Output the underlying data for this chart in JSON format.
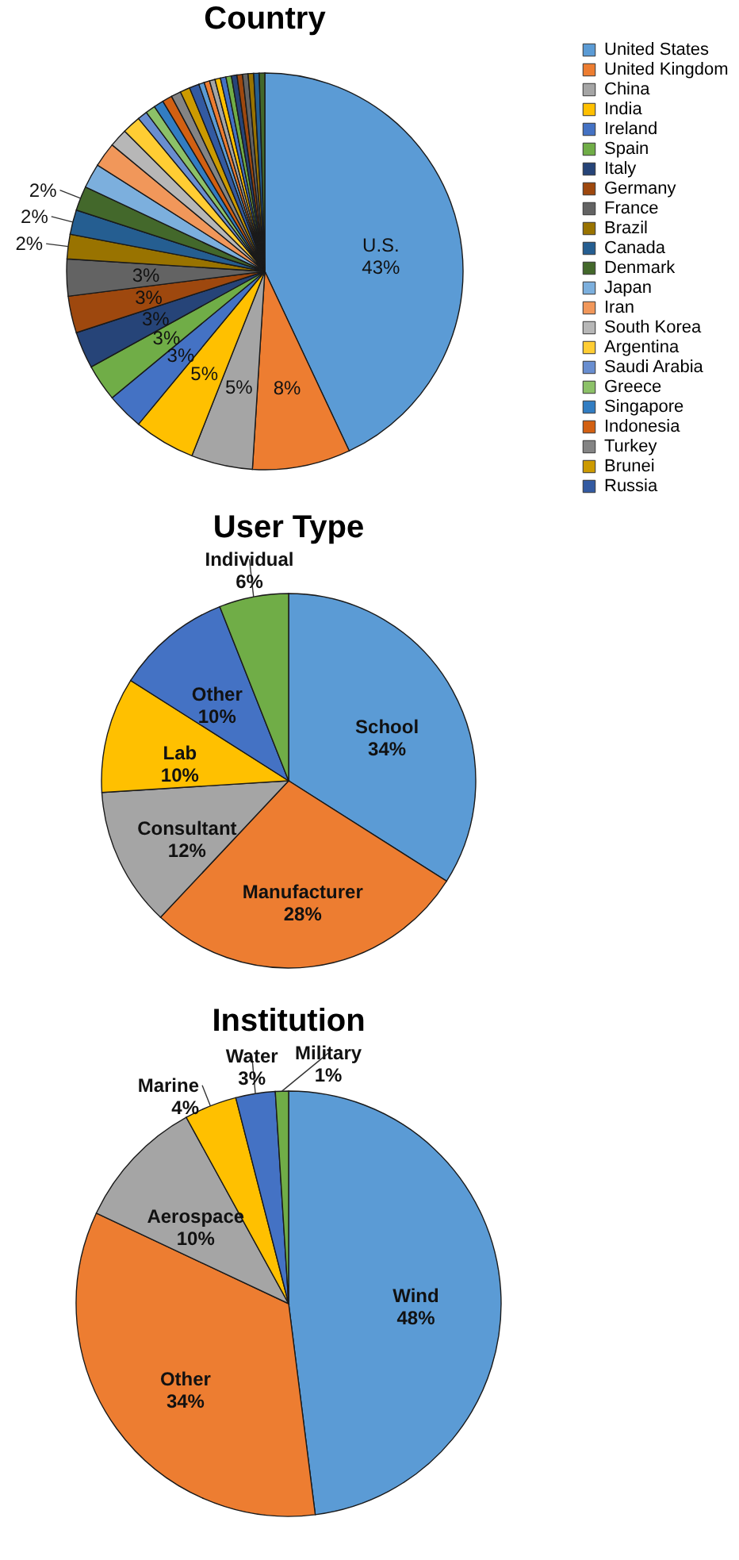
{
  "chart_data": [
    {
      "type": "pie",
      "title": "Country",
      "legend": "right",
      "categories": [
        "United States",
        "United Kingdom",
        "China",
        "India",
        "Ireland",
        "Spain",
        "Italy",
        "Germany",
        "France",
        "Brazil",
        "Canada",
        "Denmark",
        "Japan",
        "Iran",
        "South Korea",
        "Argentina",
        "Saudi Arabia",
        "Greece",
        "Singapore",
        "Indonesia",
        "Turkey",
        "Brunei",
        "Russia",
        null,
        null,
        null,
        null,
        null,
        null,
        null,
        null,
        null,
        null,
        null,
        null
      ],
      "values": [
        43,
        8,
        5,
        5,
        3,
        3,
        3,
        3,
        3,
        2,
        2,
        2,
        2,
        2,
        1.5,
        1.5,
        0.8,
        0.8,
        0.8,
        0.8,
        0.8,
        0.8,
        0.8,
        0.45,
        0.45,
        0.45,
        0.45,
        0.45,
        0.45,
        0.45,
        0.45,
        0.45,
        0.45,
        0.45,
        0.45
      ],
      "colors": [
        "#5b9bd5",
        "#ed7d31",
        "#a5a5a5",
        "#ffc000",
        "#4472c4",
        "#70ad47",
        "#264478",
        "#9e480e",
        "#636363",
        "#997300",
        "#255e91",
        "#43682b",
        "#7cafdd",
        "#f1975a",
        "#b7b7b7",
        "#ffcd33",
        "#698ed0",
        "#8cc168",
        "#327dc2",
        "#d26012",
        "#848484",
        "#cc9a00",
        "#335aa1",
        "#5b9bd5",
        "#ed7d31",
        "#a5a5a5",
        "#ffc000",
        "#4472c4",
        "#70ad47",
        "#264478",
        "#9e480e",
        "#636363",
        "#997300",
        "#255e91",
        "#43682b"
      ],
      "value_labels": [
        "U.S.\n43%",
        "8%",
        "5%",
        "5%",
        "3%",
        "3%",
        "3%",
        "3%",
        "3%",
        "2%",
        "2%",
        "2%",
        null,
        null,
        null,
        null,
        null,
        null,
        null,
        null,
        null,
        null,
        null,
        null,
        null,
        null,
        null,
        null,
        null,
        null,
        null,
        null,
        null,
        null,
        null
      ]
    },
    {
      "type": "pie",
      "title": "User Type",
      "legend": false,
      "categories": [
        "School",
        "Manufacturer",
        "Consultant",
        "Lab",
        "Other",
        "Individual"
      ],
      "values": [
        34,
        28,
        12,
        10,
        10,
        6
      ],
      "colors": [
        "#5b9bd5",
        "#ed7d31",
        "#a5a5a5",
        "#ffc000",
        "#4472c4",
        "#70ad47"
      ],
      "value_labels": [
        "34%",
        "28%",
        "12%",
        "10%",
        "10%",
        "6%"
      ]
    },
    {
      "type": "pie",
      "title": "Institution",
      "legend": false,
      "categories": [
        "Wind",
        "Other",
        "Aerospace",
        "Marine",
        "Water",
        "Military"
      ],
      "values": [
        48,
        34,
        10,
        4,
        3,
        1
      ],
      "colors": [
        "#5b9bd5",
        "#ed7d31",
        "#a5a5a5",
        "#ffc000",
        "#4472c4",
        "#70ad47"
      ],
      "value_labels": [
        "48%",
        "34%",
        "10%",
        "4%",
        "3%",
        "1%"
      ]
    }
  ]
}
